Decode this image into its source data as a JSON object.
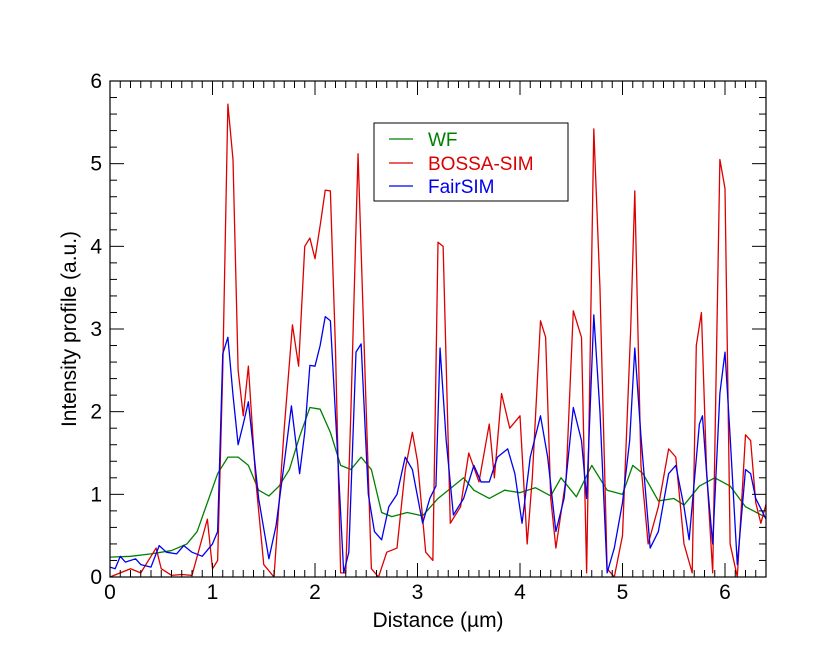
{
  "chart_data": {
    "type": "line",
    "title": "",
    "xlabel": "Distance (µm)",
    "ylabel": "Intensity profile (a.u.)",
    "xlim": [
      0,
      6.4
    ],
    "ylim": [
      0,
      6
    ],
    "x_ticks": [
      0,
      1,
      2,
      3,
      4,
      5,
      6
    ],
    "x_tick_labels": [
      "0",
      "1",
      "2",
      "3",
      "4",
      "5",
      "6"
    ],
    "y_ticks": [
      0,
      1,
      2,
      3,
      4,
      5,
      6
    ],
    "y_tick_labels": [
      "0",
      "1",
      "2",
      "3",
      "4",
      "5",
      "6"
    ],
    "grid": false,
    "legend_position": "top-center",
    "series": [
      {
        "name": "WF",
        "color": "#008000",
        "points": [
          [
            0,
            0.24
          ],
          [
            0.2,
            0.25
          ],
          [
            0.4,
            0.28
          ],
          [
            0.6,
            0.32
          ],
          [
            0.75,
            0.4
          ],
          [
            0.85,
            0.55
          ],
          [
            0.95,
            0.9
          ],
          [
            1.05,
            1.25
          ],
          [
            1.15,
            1.45
          ],
          [
            1.25,
            1.45
          ],
          [
            1.35,
            1.35
          ],
          [
            1.45,
            1.05
          ],
          [
            1.55,
            0.98
          ],
          [
            1.65,
            1.1
          ],
          [
            1.75,
            1.3
          ],
          [
            1.85,
            1.7
          ],
          [
            1.95,
            2.05
          ],
          [
            2.05,
            2.03
          ],
          [
            2.15,
            1.75
          ],
          [
            2.25,
            1.35
          ],
          [
            2.35,
            1.3
          ],
          [
            2.45,
            1.45
          ],
          [
            2.55,
            1.3
          ],
          [
            2.65,
            0.78
          ],
          [
            2.75,
            0.73
          ],
          [
            2.9,
            0.78
          ],
          [
            3.05,
            0.74
          ],
          [
            3.2,
            0.95
          ],
          [
            3.3,
            1.05
          ],
          [
            3.45,
            1.2
          ],
          [
            3.55,
            1.05
          ],
          [
            3.7,
            0.95
          ],
          [
            3.85,
            1.05
          ],
          [
            4.0,
            1.02
          ],
          [
            4.15,
            1.08
          ],
          [
            4.3,
            0.98
          ],
          [
            4.4,
            1.2
          ],
          [
            4.55,
            0.97
          ],
          [
            4.7,
            1.35
          ],
          [
            4.85,
            1.05
          ],
          [
            5.0,
            1.0
          ],
          [
            5.1,
            1.35
          ],
          [
            5.2,
            1.25
          ],
          [
            5.35,
            0.92
          ],
          [
            5.5,
            0.95
          ],
          [
            5.6,
            0.87
          ],
          [
            5.75,
            1.1
          ],
          [
            5.9,
            1.2
          ],
          [
            6.05,
            1.1
          ],
          [
            6.2,
            0.85
          ],
          [
            6.4,
            0.72
          ]
        ]
      },
      {
        "name": "BOSSA-SIM",
        "color": "#dd0000",
        "points": [
          [
            0,
            0
          ],
          [
            0.1,
            0.05
          ],
          [
            0.2,
            0.1
          ],
          [
            0.3,
            0.05
          ],
          [
            0.4,
            0.25
          ],
          [
            0.45,
            0.35
          ],
          [
            0.5,
            0.1
          ],
          [
            0.6,
            0.02
          ],
          [
            0.7,
            0.03
          ],
          [
            0.8,
            0.02
          ],
          [
            0.95,
            0.7
          ],
          [
            1.0,
            0.1
          ],
          [
            1.05,
            0.2
          ],
          [
            1.1,
            2.5
          ],
          [
            1.15,
            5.72
          ],
          [
            1.2,
            5.05
          ],
          [
            1.25,
            2.5
          ],
          [
            1.3,
            1.95
          ],
          [
            1.35,
            2.55
          ],
          [
            1.42,
            1.2
          ],
          [
            1.5,
            0.15
          ],
          [
            1.6,
            0.0
          ],
          [
            1.7,
            1.8
          ],
          [
            1.78,
            3.05
          ],
          [
            1.84,
            2.55
          ],
          [
            1.9,
            4.0
          ],
          [
            1.95,
            4.1
          ],
          [
            2.0,
            3.85
          ],
          [
            2.05,
            4.25
          ],
          [
            2.1,
            4.68
          ],
          [
            2.15,
            4.67
          ],
          [
            2.2,
            2.75
          ],
          [
            2.25,
            0.05
          ],
          [
            2.3,
            0.05
          ],
          [
            2.35,
            2.0
          ],
          [
            2.42,
            5.12
          ],
          [
            2.5,
            2.0
          ],
          [
            2.55,
            0.1
          ],
          [
            2.62,
            0.0
          ],
          [
            2.7,
            0.3
          ],
          [
            2.8,
            0.35
          ],
          [
            2.88,
            1.3
          ],
          [
            2.95,
            1.75
          ],
          [
            3.0,
            1.4
          ],
          [
            3.08,
            0.3
          ],
          [
            3.15,
            0.2
          ],
          [
            3.2,
            4.05
          ],
          [
            3.25,
            4.0
          ],
          [
            3.32,
            0.65
          ],
          [
            3.42,
            0.85
          ],
          [
            3.5,
            1.5
          ],
          [
            3.6,
            1.15
          ],
          [
            3.7,
            1.85
          ],
          [
            3.75,
            1.2
          ],
          [
            3.82,
            2.22
          ],
          [
            3.9,
            1.8
          ],
          [
            4.0,
            1.95
          ],
          [
            4.07,
            0.4
          ],
          [
            4.12,
            1.2
          ],
          [
            4.2,
            3.1
          ],
          [
            4.25,
            2.9
          ],
          [
            4.3,
            0.95
          ],
          [
            4.35,
            0.35
          ],
          [
            4.45,
            1.2
          ],
          [
            4.52,
            3.22
          ],
          [
            4.6,
            2.9
          ],
          [
            4.65,
            0.05
          ],
          [
            4.72,
            5.42
          ],
          [
            4.78,
            3.5
          ],
          [
            4.85,
            0.1
          ],
          [
            4.92,
            0.0
          ],
          [
            5.0,
            0.5
          ],
          [
            5.08,
            3.0
          ],
          [
            5.12,
            4.67
          ],
          [
            5.18,
            1.35
          ],
          [
            5.25,
            0.4
          ],
          [
            5.35,
            0.85
          ],
          [
            5.45,
            1.55
          ],
          [
            5.52,
            1.45
          ],
          [
            5.6,
            0.4
          ],
          [
            5.68,
            0.05
          ],
          [
            5.72,
            2.8
          ],
          [
            5.77,
            3.2
          ],
          [
            5.82,
            1.3
          ],
          [
            5.88,
            0.05
          ],
          [
            5.95,
            5.05
          ],
          [
            6.0,
            4.7
          ],
          [
            6.05,
            0.4
          ],
          [
            6.12,
            0.0
          ],
          [
            6.2,
            1.72
          ],
          [
            6.25,
            1.65
          ],
          [
            6.3,
            0.9
          ],
          [
            6.35,
            0.65
          ],
          [
            6.4,
            0.88
          ]
        ]
      },
      {
        "name": "FairSIM",
        "color": "#0000ee",
        "points": [
          [
            0,
            0.12
          ],
          [
            0.05,
            0.1
          ],
          [
            0.1,
            0.25
          ],
          [
            0.15,
            0.18
          ],
          [
            0.25,
            0.22
          ],
          [
            0.3,
            0.15
          ],
          [
            0.4,
            0.12
          ],
          [
            0.48,
            0.38
          ],
          [
            0.55,
            0.3
          ],
          [
            0.65,
            0.28
          ],
          [
            0.72,
            0.38
          ],
          [
            0.8,
            0.3
          ],
          [
            0.9,
            0.25
          ],
          [
            1.0,
            0.4
          ],
          [
            1.05,
            0.55
          ],
          [
            1.1,
            2.7
          ],
          [
            1.15,
            2.9
          ],
          [
            1.2,
            2.2
          ],
          [
            1.25,
            1.6
          ],
          [
            1.3,
            1.85
          ],
          [
            1.35,
            2.12
          ],
          [
            1.45,
            0.95
          ],
          [
            1.55,
            0.22
          ],
          [
            1.62,
            0.62
          ],
          [
            1.7,
            1.38
          ],
          [
            1.77,
            2.07
          ],
          [
            1.85,
            1.25
          ],
          [
            1.9,
            1.75
          ],
          [
            1.95,
            2.56
          ],
          [
            2.0,
            2.55
          ],
          [
            2.05,
            2.8
          ],
          [
            2.1,
            3.15
          ],
          [
            2.15,
            3.1
          ],
          [
            2.22,
            1.5
          ],
          [
            2.28,
            0.05
          ],
          [
            2.33,
            0.3
          ],
          [
            2.4,
            2.72
          ],
          [
            2.45,
            2.82
          ],
          [
            2.52,
            1.0
          ],
          [
            2.58,
            0.55
          ],
          [
            2.65,
            0.45
          ],
          [
            2.72,
            0.85
          ],
          [
            2.8,
            1.0
          ],
          [
            2.88,
            1.45
          ],
          [
            2.95,
            1.3
          ],
          [
            3.05,
            0.65
          ],
          [
            3.12,
            0.95
          ],
          [
            3.18,
            1.1
          ],
          [
            3.22,
            2.77
          ],
          [
            3.28,
            1.65
          ],
          [
            3.35,
            0.75
          ],
          [
            3.45,
            0.95
          ],
          [
            3.55,
            1.35
          ],
          [
            3.62,
            1.15
          ],
          [
            3.7,
            1.15
          ],
          [
            3.78,
            1.45
          ],
          [
            3.88,
            1.55
          ],
          [
            3.95,
            1.25
          ],
          [
            4.02,
            0.65
          ],
          [
            4.1,
            1.45
          ],
          [
            4.2,
            1.95
          ],
          [
            4.27,
            1.45
          ],
          [
            4.35,
            0.55
          ],
          [
            4.43,
            0.95
          ],
          [
            4.52,
            2.05
          ],
          [
            4.6,
            1.65
          ],
          [
            4.65,
            0.95
          ],
          [
            4.72,
            3.17
          ],
          [
            4.78,
            2.0
          ],
          [
            4.85,
            0.05
          ],
          [
            4.92,
            0.35
          ],
          [
            5.0,
            0.9
          ],
          [
            5.07,
            1.65
          ],
          [
            5.12,
            2.77
          ],
          [
            5.18,
            1.7
          ],
          [
            5.27,
            0.35
          ],
          [
            5.35,
            0.55
          ],
          [
            5.45,
            1.25
          ],
          [
            5.52,
            1.35
          ],
          [
            5.6,
            0.85
          ],
          [
            5.65,
            0.45
          ],
          [
            5.75,
            1.85
          ],
          [
            5.78,
            1.95
          ],
          [
            5.83,
            1.1
          ],
          [
            5.88,
            0.4
          ],
          [
            5.95,
            2.22
          ],
          [
            6.0,
            2.72
          ],
          [
            6.05,
            1.7
          ],
          [
            6.12,
            0.15
          ],
          [
            6.2,
            1.3
          ],
          [
            6.25,
            1.25
          ],
          [
            6.3,
            0.95
          ],
          [
            6.4,
            0.7
          ]
        ]
      }
    ]
  }
}
